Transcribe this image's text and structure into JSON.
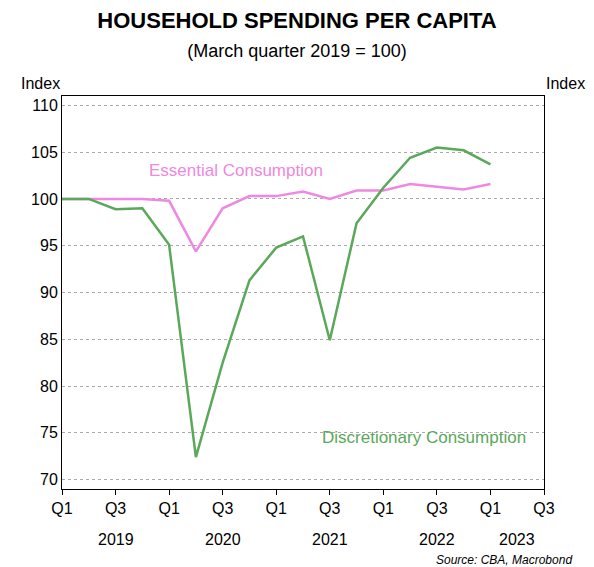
{
  "chart_data": {
    "type": "line",
    "title": "HOUSEHOLD SPENDING PER CAPITA",
    "subtitle": "(March quarter 2019 = 100)",
    "y_label": "Index",
    "source": "Source: CBA, Macrobond",
    "categories": [
      "Q1",
      null,
      "Q3",
      null,
      "Q1",
      null,
      "Q3",
      null,
      "Q1",
      null,
      "Q3",
      null,
      "Q1",
      null,
      "Q3",
      null,
      "Q1",
      null,
      "Q3"
    ],
    "x_group_labels": [
      "2019",
      "2020",
      "2021",
      "2022",
      "2023"
    ],
    "series": [
      {
        "name": "Essential Consumption",
        "color": "#ee88e0",
        "values": [
          100,
          100,
          100,
          100,
          99.8,
          94.4,
          99.0,
          100.3,
          100.3,
          100.8,
          100.0,
          100.9,
          100.9,
          101.6,
          101.3,
          101.0,
          101.6,
          null,
          null
        ]
      },
      {
        "name": "Discretionary Consumption",
        "color": "#5aa85a",
        "values": [
          100,
          100,
          98.9,
          99.0,
          95.1,
          72.4,
          82.5,
          91.3,
          94.8,
          96.0,
          84.9,
          97.4,
          101.2,
          104.4,
          105.5,
          105.2,
          103.7,
          null,
          null
        ]
      }
    ],
    "ylim": [
      69,
      111
    ],
    "yticks": [
      70,
      75,
      80,
      85,
      90,
      95,
      100,
      105,
      110
    ],
    "y2lim": [
      69,
      111
    ],
    "y2ticks": [
      70,
      75,
      80,
      85,
      90,
      95,
      100,
      105,
      110
    ],
    "grid": true
  }
}
